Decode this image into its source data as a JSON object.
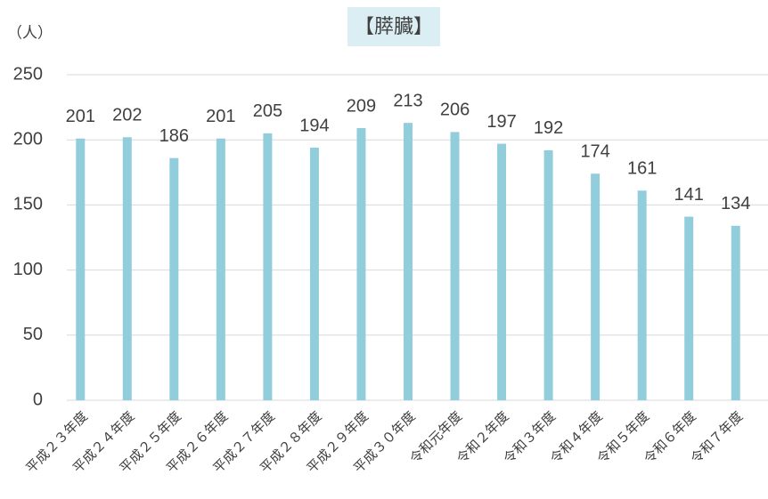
{
  "chart_data": {
    "type": "bar",
    "title": "【膵臓】",
    "y_label": "（人）",
    "categories": [
      "平成２３年度",
      "平成２４年度",
      "平成２５年度",
      "平成２６年度",
      "平成２７年度",
      "平成２８年度",
      "平成２９年度",
      "平成３０年度",
      "令和元年度",
      "令和２年度",
      "令和３年度",
      "令和４年度",
      "令和５年度",
      "令和６年度",
      "令和７年度"
    ],
    "values": [
      201,
      202,
      186,
      201,
      205,
      194,
      209,
      213,
      206,
      197,
      192,
      174,
      161,
      141,
      134
    ],
    "color": "#92cddc",
    "ylim": [
      0,
      250
    ],
    "yticks": [
      0,
      50,
      100,
      150,
      200,
      250
    ],
    "grid": true
  }
}
